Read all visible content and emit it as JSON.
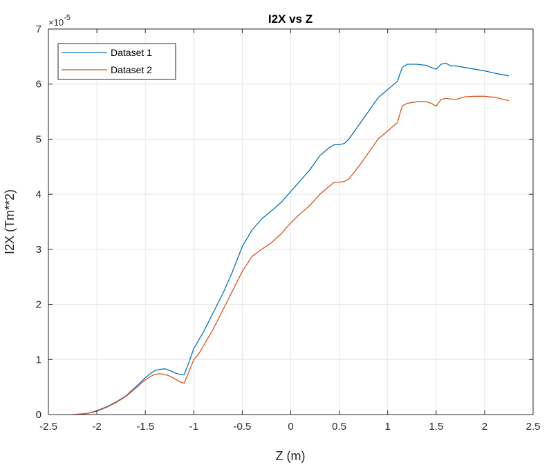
{
  "chart_data": {
    "type": "line",
    "title": "I2X vs Z",
    "xlabel": "Z (m)",
    "ylabel": "I2X (Tm**2)",
    "y_multiplier": "×10",
    "y_exponent": "-5",
    "xlim": [
      -2.5,
      2.5
    ],
    "ylim": [
      0,
      7
    ],
    "xticks": [
      -2.5,
      -2,
      -1.5,
      -1,
      -0.5,
      0,
      0.5,
      1,
      1.5,
      2,
      2.5
    ],
    "xtick_labels": [
      "-2.5",
      "-2",
      "-1.5",
      "-1",
      "-0.5",
      "0",
      "0.5",
      "1",
      "1.5",
      "2",
      "2.5"
    ],
    "yticks": [
      0,
      1,
      2,
      3,
      4,
      5,
      6,
      7
    ],
    "ytick_labels": [
      "0",
      "1",
      "2",
      "3",
      "4",
      "5",
      "6",
      "7"
    ],
    "grid": true,
    "legend_position": "top-left",
    "series": [
      {
        "name": "Dataset 1",
        "color": "#0072BD",
        "points": [
          [
            -2.25,
            0.0
          ],
          [
            -2.1,
            0.02
          ],
          [
            -2.0,
            0.07
          ],
          [
            -1.9,
            0.14
          ],
          [
            -1.8,
            0.23
          ],
          [
            -1.7,
            0.34
          ],
          [
            -1.6,
            0.5
          ],
          [
            -1.5,
            0.67
          ],
          [
            -1.45,
            0.74
          ],
          [
            -1.4,
            0.8
          ],
          [
            -1.35,
            0.82
          ],
          [
            -1.3,
            0.83
          ],
          [
            -1.25,
            0.8
          ],
          [
            -1.2,
            0.76
          ],
          [
            -1.15,
            0.73
          ],
          [
            -1.1,
            0.72
          ],
          [
            -1.05,
            0.95
          ],
          [
            -1.0,
            1.2
          ],
          [
            -0.95,
            1.35
          ],
          [
            -0.9,
            1.5
          ],
          [
            -0.8,
            1.85
          ],
          [
            -0.7,
            2.2
          ],
          [
            -0.6,
            2.6
          ],
          [
            -0.5,
            3.05
          ],
          [
            -0.4,
            3.35
          ],
          [
            -0.3,
            3.55
          ],
          [
            -0.2,
            3.7
          ],
          [
            -0.1,
            3.85
          ],
          [
            0.0,
            4.05
          ],
          [
            0.1,
            4.25
          ],
          [
            0.2,
            4.45
          ],
          [
            0.3,
            4.7
          ],
          [
            0.4,
            4.85
          ],
          [
            0.45,
            4.9
          ],
          [
            0.5,
            4.9
          ],
          [
            0.55,
            4.92
          ],
          [
            0.6,
            5.0
          ],
          [
            0.7,
            5.25
          ],
          [
            0.8,
            5.5
          ],
          [
            0.9,
            5.75
          ],
          [
            1.0,
            5.9
          ],
          [
            1.1,
            6.05
          ],
          [
            1.15,
            6.3
          ],
          [
            1.2,
            6.36
          ],
          [
            1.3,
            6.36
          ],
          [
            1.4,
            6.34
          ],
          [
            1.45,
            6.3
          ],
          [
            1.5,
            6.27
          ],
          [
            1.55,
            6.36
          ],
          [
            1.6,
            6.38
          ],
          [
            1.65,
            6.33
          ],
          [
            1.7,
            6.33
          ],
          [
            1.8,
            6.3
          ],
          [
            1.9,
            6.27
          ],
          [
            2.0,
            6.24
          ],
          [
            2.1,
            6.2
          ],
          [
            2.25,
            6.15
          ]
        ]
      },
      {
        "name": "Dataset 2",
        "color": "#D95319",
        "points": [
          [
            -2.25,
            0.0
          ],
          [
            -2.1,
            0.02
          ],
          [
            -2.0,
            0.06
          ],
          [
            -1.9,
            0.13
          ],
          [
            -1.8,
            0.22
          ],
          [
            -1.7,
            0.33
          ],
          [
            -1.6,
            0.48
          ],
          [
            -1.5,
            0.63
          ],
          [
            -1.45,
            0.69
          ],
          [
            -1.4,
            0.73
          ],
          [
            -1.35,
            0.74
          ],
          [
            -1.3,
            0.73
          ],
          [
            -1.25,
            0.7
          ],
          [
            -1.2,
            0.65
          ],
          [
            -1.15,
            0.6
          ],
          [
            -1.1,
            0.57
          ],
          [
            -1.05,
            0.78
          ],
          [
            -1.0,
            1.0
          ],
          [
            -0.95,
            1.1
          ],
          [
            -0.9,
            1.25
          ],
          [
            -0.8,
            1.55
          ],
          [
            -0.7,
            1.9
          ],
          [
            -0.6,
            2.25
          ],
          [
            -0.5,
            2.6
          ],
          [
            -0.4,
            2.87
          ],
          [
            -0.3,
            3.0
          ],
          [
            -0.2,
            3.12
          ],
          [
            -0.1,
            3.28
          ],
          [
            0.0,
            3.48
          ],
          [
            0.1,
            3.65
          ],
          [
            0.2,
            3.8
          ],
          [
            0.3,
            4.0
          ],
          [
            0.4,
            4.15
          ],
          [
            0.45,
            4.22
          ],
          [
            0.5,
            4.22
          ],
          [
            0.55,
            4.23
          ],
          [
            0.6,
            4.28
          ],
          [
            0.7,
            4.5
          ],
          [
            0.8,
            4.75
          ],
          [
            0.9,
            5.0
          ],
          [
            1.0,
            5.15
          ],
          [
            1.1,
            5.3
          ],
          [
            1.15,
            5.6
          ],
          [
            1.2,
            5.65
          ],
          [
            1.3,
            5.68
          ],
          [
            1.4,
            5.68
          ],
          [
            1.45,
            5.65
          ],
          [
            1.5,
            5.6
          ],
          [
            1.55,
            5.72
          ],
          [
            1.6,
            5.74
          ],
          [
            1.7,
            5.72
          ],
          [
            1.8,
            5.77
          ],
          [
            1.9,
            5.78
          ],
          [
            2.0,
            5.78
          ],
          [
            2.1,
            5.76
          ],
          [
            2.25,
            5.7
          ]
        ]
      }
    ]
  }
}
